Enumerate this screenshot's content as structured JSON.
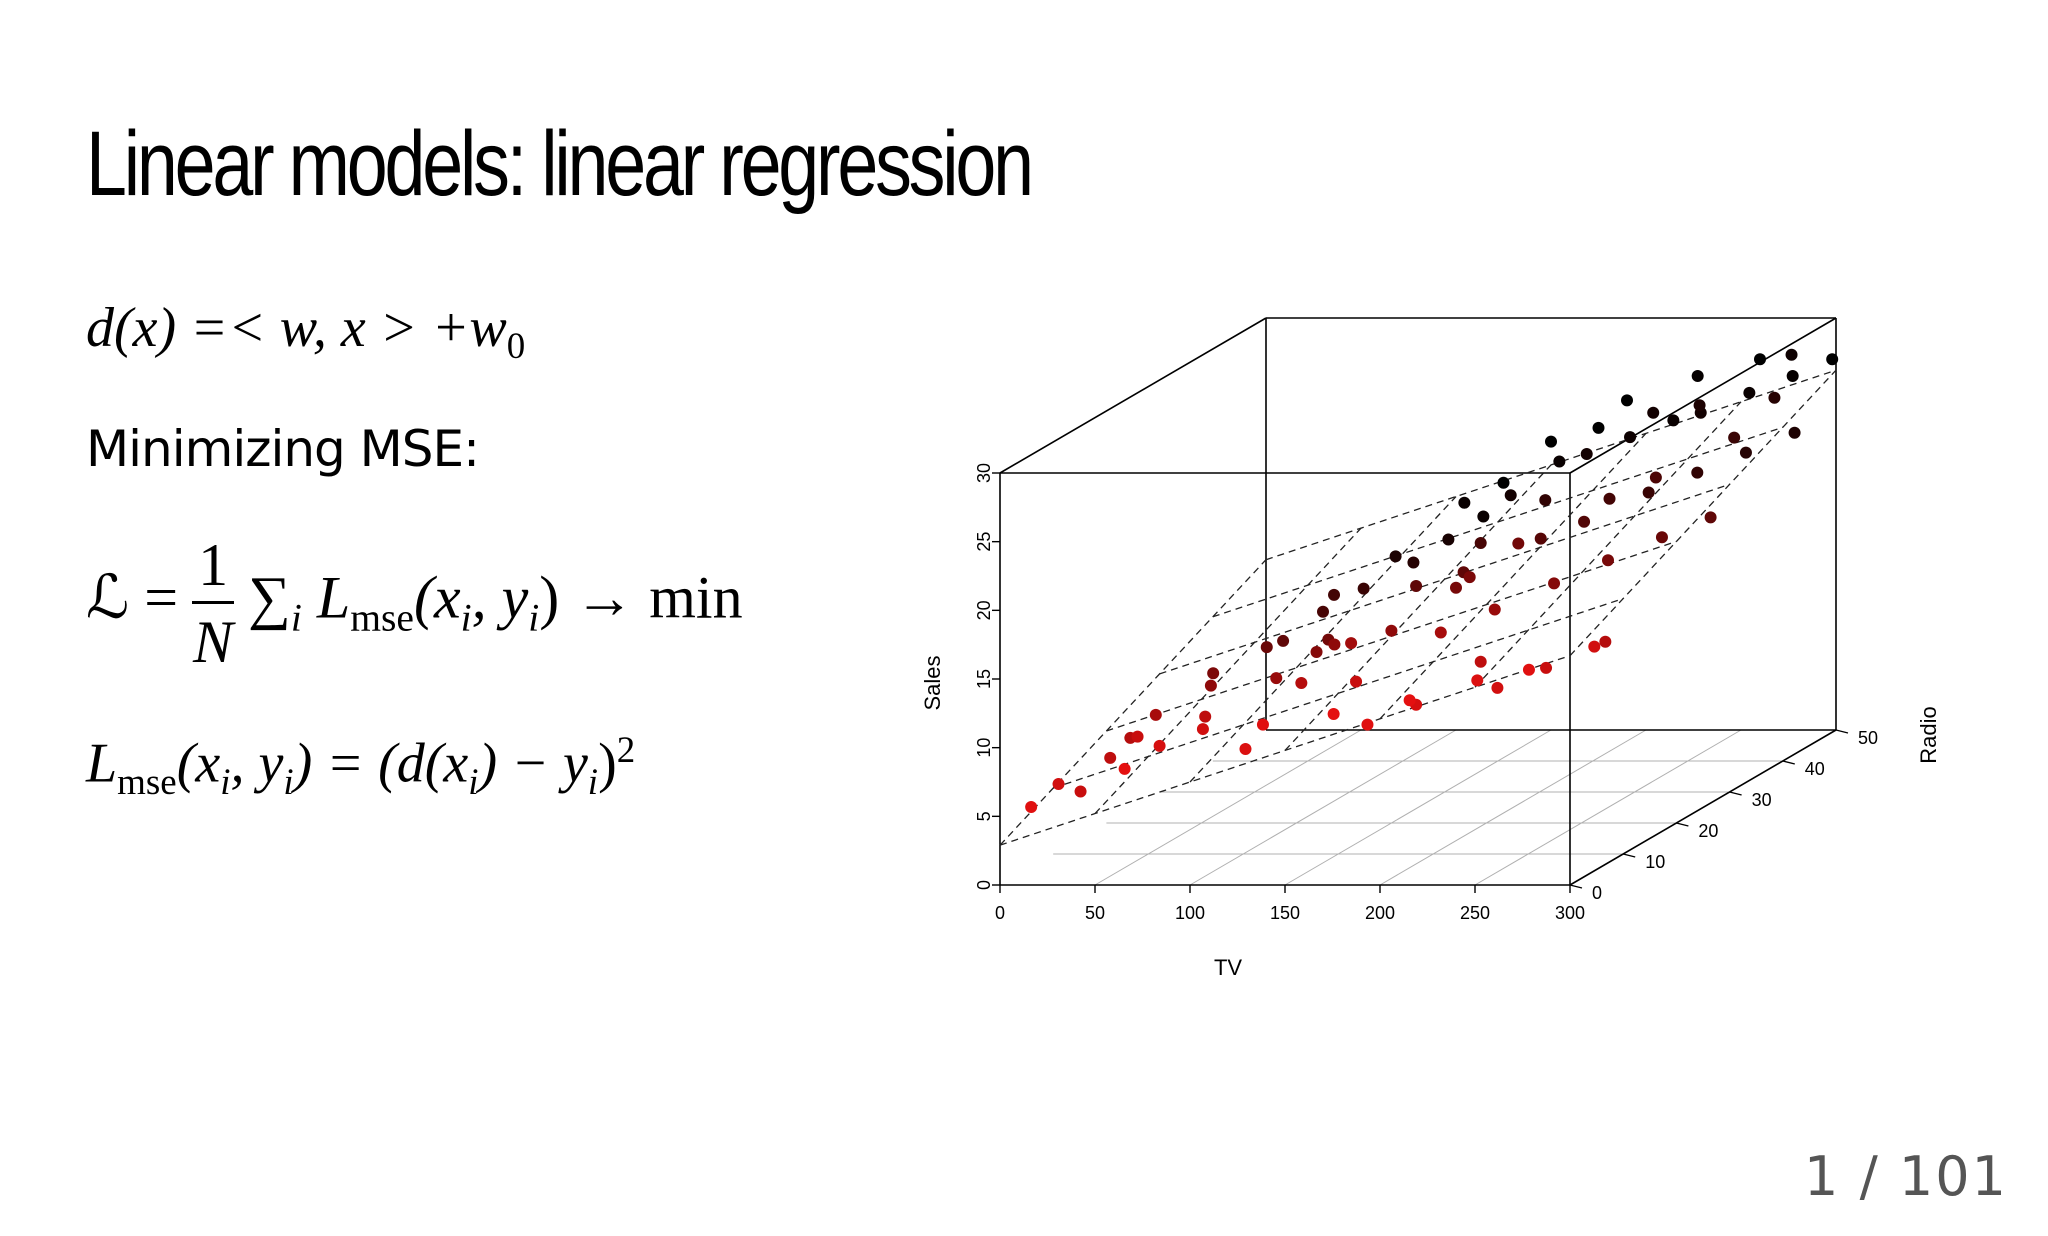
{
  "slide": {
    "title": "Linear models: linear regression",
    "subheading": "Minimizing MSE:",
    "page_number": "1 / 101"
  },
  "formulas": {
    "decision": {
      "lhs": "d(x) =< w, x > +w",
      "subscript": "0"
    },
    "loss": {
      "lhs": "ℒ =",
      "numerator": "1",
      "denominator": "N",
      "sum": "∑",
      "sum_index": "i",
      "L": "L",
      "L_sub": "mse",
      "args": "(x",
      "arg_i1": "i",
      "args_mid": ", y",
      "arg_i2": "i",
      "args_end": ") → min"
    },
    "mse": {
      "L": "L",
      "L_sub": "mse",
      "p1": "(x",
      "i1": "i",
      "p2": ", y",
      "i2": "i",
      "p3": ") = (d(x",
      "i3": "i",
      "p4": ") − y",
      "i4": "i",
      "p5": ")",
      "exp": "2"
    }
  },
  "chart_data": {
    "type": "scatter",
    "projection": "3d",
    "xlabel": "TV",
    "ylabel": "Sales",
    "zlabel": "Radio",
    "x_ticks": [
      "0",
      "50",
      "100",
      "150",
      "200",
      "250",
      "300"
    ],
    "y_ticks": [
      "0",
      "5",
      "10",
      "15",
      "20",
      "25",
      "30"
    ],
    "z_ticks": [
      "0",
      "10",
      "20",
      "30",
      "40",
      "50"
    ],
    "xlim": [
      0,
      300
    ],
    "ylim": [
      0,
      30
    ],
    "zlim": [
      0,
      50
    ],
    "fitted_plane": {
      "intercept": 2.9,
      "tv_coef": 0.046,
      "radio_coef": 0.19
    },
    "point_color_near": "#ee1111",
    "point_color_far": "#000000",
    "points": [
      [
        8,
        5,
        3
      ],
      [
        14,
        6,
        6
      ],
      [
        20,
        5,
        8
      ],
      [
        35,
        8,
        12
      ],
      [
        40,
        9,
        15
      ],
      [
        50,
        9,
        8
      ],
      [
        55,
        10,
        20
      ],
      [
        62,
        11,
        28
      ],
      [
        70,
        9,
        5
      ],
      [
        72,
        12,
        35
      ],
      [
        80,
        10,
        10
      ],
      [
        85,
        13,
        38
      ],
      [
        95,
        11,
        18
      ],
      [
        100,
        14,
        42
      ],
      [
        105,
        12,
        22
      ],
      [
        110,
        15,
        45
      ],
      [
        118,
        9,
        4
      ],
      [
        120,
        16,
        48
      ],
      [
        125,
        12,
        12
      ],
      [
        135,
        15,
        30
      ],
      [
        140,
        18,
        46
      ],
      [
        150,
        14,
        20
      ],
      [
        155,
        17,
        35
      ],
      [
        160,
        20,
        48
      ],
      [
        165,
        13,
        8
      ],
      [
        170,
        16,
        25
      ],
      [
        175,
        19,
        40
      ],
      [
        180,
        21,
        46
      ],
      [
        185,
        11,
        3
      ],
      [
        190,
        15,
        15
      ],
      [
        195,
        18,
        32
      ],
      [
        200,
        22,
        47
      ],
      [
        205,
        12,
        5
      ],
      [
        210,
        16,
        18
      ],
      [
        215,
        19,
        33
      ],
      [
        220,
        23,
        48
      ],
      [
        225,
        14,
        10
      ],
      [
        230,
        17,
        22
      ],
      [
        235,
        20,
        38
      ],
      [
        240,
        24,
        46
      ],
      [
        245,
        13,
        6
      ],
      [
        250,
        18,
        25
      ],
      [
        255,
        21,
        40
      ],
      [
        260,
        25,
        48
      ],
      [
        265,
        14,
        8
      ],
      [
        270,
        19,
        28
      ],
      [
        275,
        22,
        42
      ],
      [
        280,
        26,
        49
      ],
      [
        285,
        15,
        12
      ],
      [
        290,
        20,
        30
      ],
      [
        295,
        23,
        44
      ],
      [
        298,
        27,
        50
      ],
      [
        60,
        8,
        2
      ],
      [
        90,
        10,
        6
      ],
      [
        130,
        11,
        3
      ],
      [
        170,
        12,
        2
      ],
      [
        210,
        13,
        2
      ],
      [
        240,
        14,
        4
      ],
      [
        270,
        15,
        3
      ],
      [
        296,
        16,
        6
      ],
      [
        30,
        7,
        10
      ],
      [
        45,
        10,
        24
      ],
      [
        75,
        13,
        36
      ],
      [
        110,
        17,
        48
      ],
      [
        150,
        21,
        50
      ],
      [
        190,
        24,
        50
      ],
      [
        230,
        26,
        49
      ],
      [
        260,
        27,
        50
      ],
      [
        285,
        28,
        47
      ],
      [
        200,
        19,
        26
      ],
      [
        180,
        17,
        24
      ],
      [
        120,
        13,
        20
      ],
      [
        140,
        14,
        16
      ],
      [
        100,
        12,
        26
      ],
      [
        160,
        16,
        30
      ],
      [
        220,
        20,
        36
      ],
      [
        250,
        22,
        34
      ],
      [
        280,
        24,
        38
      ],
      [
        65,
        11,
        30
      ],
      [
        85,
        14,
        44
      ],
      [
        125,
        18,
        50
      ],
      [
        175,
        22,
        50
      ],
      [
        215,
        24,
        46
      ],
      [
        245,
        25,
        44
      ],
      [
        290,
        26,
        42
      ]
    ]
  }
}
